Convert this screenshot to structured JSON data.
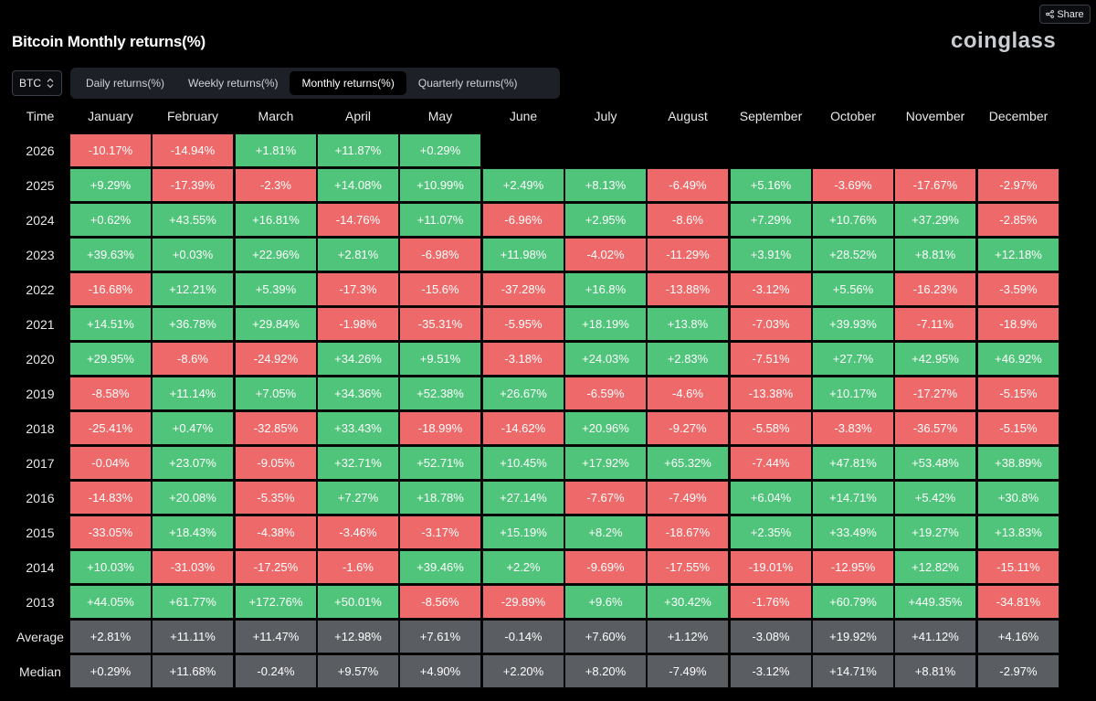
{
  "header": {
    "title": "Bitcoin Monthly returns(%)",
    "logo_text": "coinglass",
    "share_label": "Share"
  },
  "asset_select": {
    "value": "BTC"
  },
  "tabs": [
    {
      "label": "Daily returns(%)",
      "active": false
    },
    {
      "label": "Weekly returns(%)",
      "active": false
    },
    {
      "label": "Monthly returns(%)",
      "active": true
    },
    {
      "label": "Quarterly returns(%)",
      "active": false
    }
  ],
  "colors": {
    "positive": "#4fc47a",
    "negative": "#ee6a6a",
    "stat": "#5a5d62"
  },
  "table": {
    "time_header": "Time",
    "months": [
      "January",
      "February",
      "March",
      "April",
      "May",
      "June",
      "July",
      "August",
      "September",
      "October",
      "November",
      "December"
    ],
    "rows": [
      {
        "year": "2026",
        "values": [
          "-10.17%",
          "-14.94%",
          "+1.81%",
          "+11.87%",
          "+0.29%",
          "",
          "",
          "",
          "",
          "",
          "",
          ""
        ]
      },
      {
        "year": "2025",
        "values": [
          "+9.29%",
          "-17.39%",
          "-2.3%",
          "+14.08%",
          "+10.99%",
          "+2.49%",
          "+8.13%",
          "-6.49%",
          "+5.16%",
          "-3.69%",
          "-17.67%",
          "-2.97%"
        ]
      },
      {
        "year": "2024",
        "values": [
          "+0.62%",
          "+43.55%",
          "+16.81%",
          "-14.76%",
          "+11.07%",
          "-6.96%",
          "+2.95%",
          "-8.6%",
          "+7.29%",
          "+10.76%",
          "+37.29%",
          "-2.85%"
        ]
      },
      {
        "year": "2023",
        "values": [
          "+39.63%",
          "+0.03%",
          "+22.96%",
          "+2.81%",
          "-6.98%",
          "+11.98%",
          "-4.02%",
          "-11.29%",
          "+3.91%",
          "+28.52%",
          "+8.81%",
          "+12.18%"
        ]
      },
      {
        "year": "2022",
        "values": [
          "-16.68%",
          "+12.21%",
          "+5.39%",
          "-17.3%",
          "-15.6%",
          "-37.28%",
          "+16.8%",
          "-13.88%",
          "-3.12%",
          "+5.56%",
          "-16.23%",
          "-3.59%"
        ]
      },
      {
        "year": "2021",
        "values": [
          "+14.51%",
          "+36.78%",
          "+29.84%",
          "-1.98%",
          "-35.31%",
          "-5.95%",
          "+18.19%",
          "+13.8%",
          "-7.03%",
          "+39.93%",
          "-7.11%",
          "-18.9%"
        ]
      },
      {
        "year": "2020",
        "values": [
          "+29.95%",
          "-8.6%",
          "-24.92%",
          "+34.26%",
          "+9.51%",
          "-3.18%",
          "+24.03%",
          "+2.83%",
          "-7.51%",
          "+27.7%",
          "+42.95%",
          "+46.92%"
        ]
      },
      {
        "year": "2019",
        "values": [
          "-8.58%",
          "+11.14%",
          "+7.05%",
          "+34.36%",
          "+52.38%",
          "+26.67%",
          "-6.59%",
          "-4.6%",
          "-13.38%",
          "+10.17%",
          "-17.27%",
          "-5.15%"
        ]
      },
      {
        "year": "2018",
        "values": [
          "-25.41%",
          "+0.47%",
          "-32.85%",
          "+33.43%",
          "-18.99%",
          "-14.62%",
          "+20.96%",
          "-9.27%",
          "-5.58%",
          "-3.83%",
          "-36.57%",
          "-5.15%"
        ]
      },
      {
        "year": "2017",
        "values": [
          "-0.04%",
          "+23.07%",
          "-9.05%",
          "+32.71%",
          "+52.71%",
          "+10.45%",
          "+17.92%",
          "+65.32%",
          "-7.44%",
          "+47.81%",
          "+53.48%",
          "+38.89%"
        ]
      },
      {
        "year": "2016",
        "values": [
          "-14.83%",
          "+20.08%",
          "-5.35%",
          "+7.27%",
          "+18.78%",
          "+27.14%",
          "-7.67%",
          "-7.49%",
          "+6.04%",
          "+14.71%",
          "+5.42%",
          "+30.8%"
        ]
      },
      {
        "year": "2015",
        "values": [
          "-33.05%",
          "+18.43%",
          "-4.38%",
          "-3.46%",
          "-3.17%",
          "+15.19%",
          "+8.2%",
          "-18.67%",
          "+2.35%",
          "+33.49%",
          "+19.27%",
          "+13.83%"
        ]
      },
      {
        "year": "2014",
        "values": [
          "+10.03%",
          "-31.03%",
          "-17.25%",
          "-1.6%",
          "+39.46%",
          "+2.2%",
          "-9.69%",
          "-17.55%",
          "-19.01%",
          "-12.95%",
          "+12.82%",
          "-15.11%"
        ]
      },
      {
        "year": "2013",
        "values": [
          "+44.05%",
          "+61.77%",
          "+172.76%",
          "+50.01%",
          "-8.56%",
          "-29.89%",
          "+9.6%",
          "+30.42%",
          "-1.76%",
          "+60.79%",
          "+449.35%",
          "-34.81%"
        ]
      }
    ],
    "summary": [
      {
        "label": "Average",
        "values": [
          "+2.81%",
          "+11.11%",
          "+11.47%",
          "+12.98%",
          "+7.61%",
          "-0.14%",
          "+7.60%",
          "+1.12%",
          "-3.08%",
          "+19.92%",
          "+41.12%",
          "+4.16%"
        ]
      },
      {
        "label": "Median",
        "values": [
          "+0.29%",
          "+11.68%",
          "-0.24%",
          "+9.57%",
          "+4.90%",
          "+2.20%",
          "+8.20%",
          "-7.49%",
          "-3.12%",
          "+14.71%",
          "+8.81%",
          "-2.97%"
        ]
      }
    ]
  }
}
